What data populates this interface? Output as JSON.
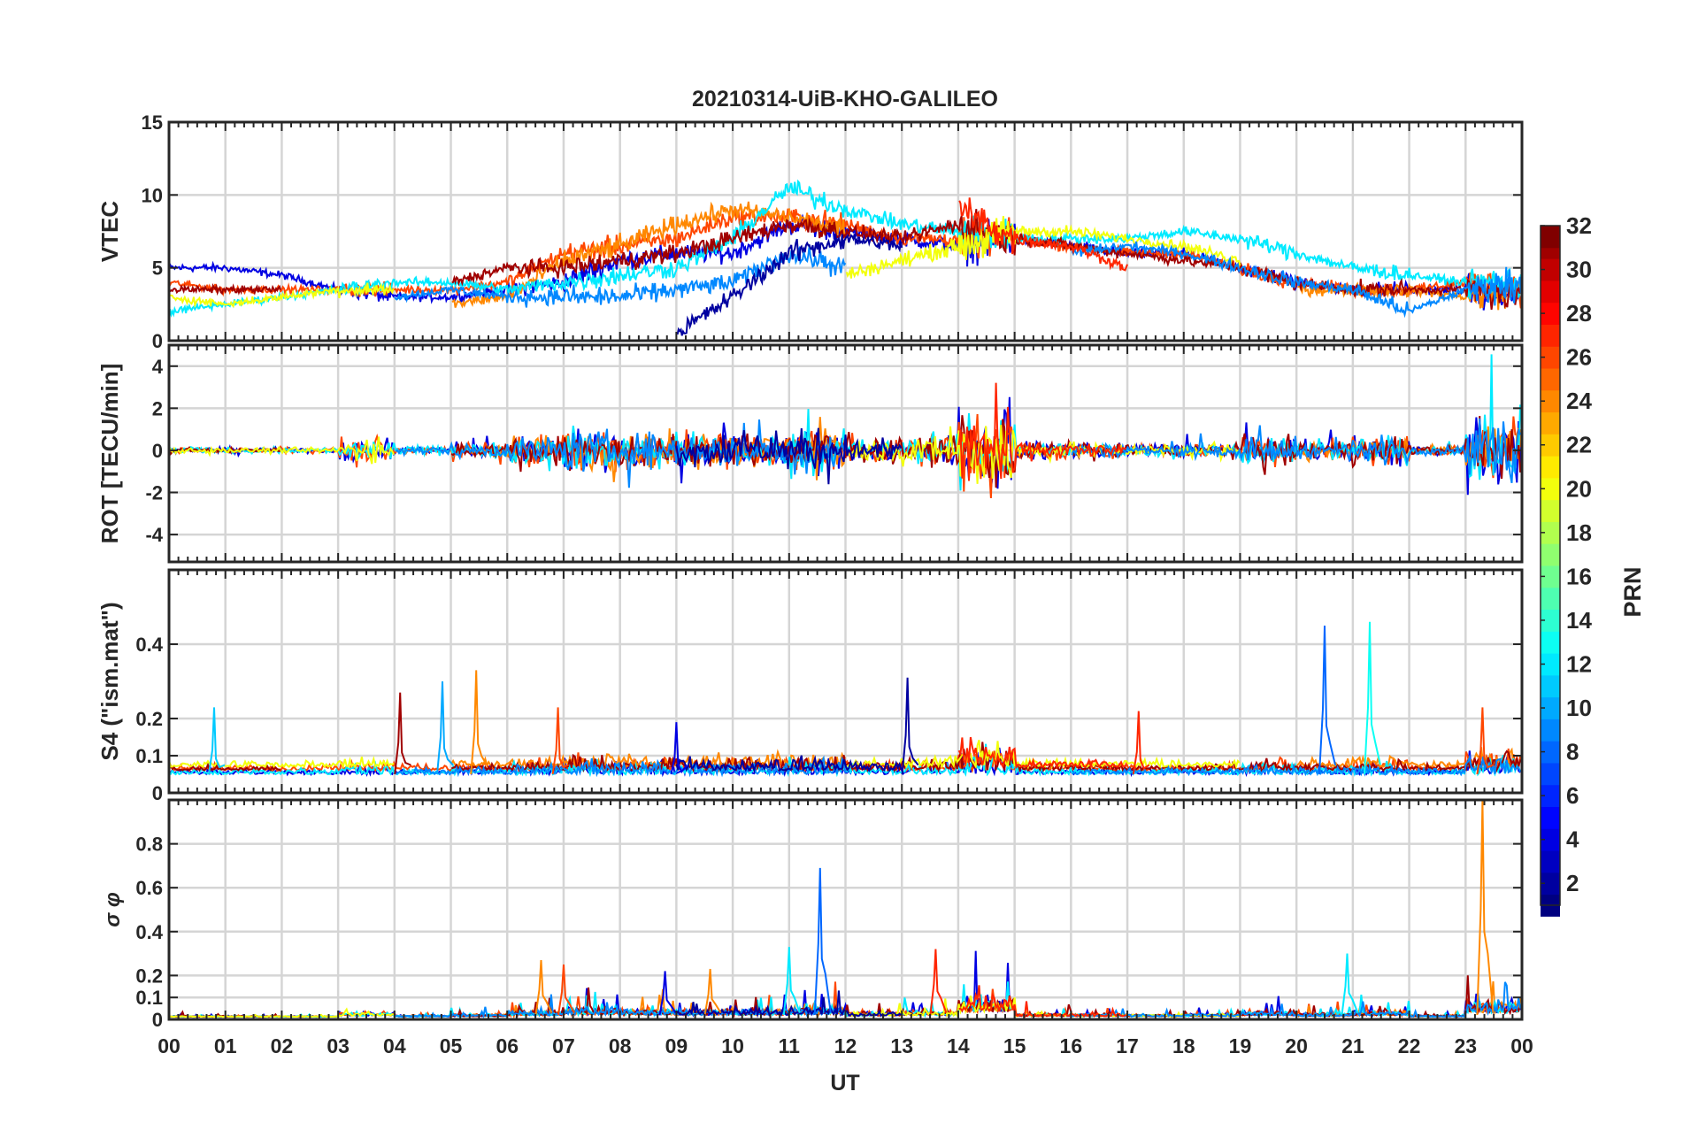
{
  "chart_data": {
    "type": "line",
    "title": "20210314-UiB-KHO-GALILEO",
    "xlabel": "UT",
    "xlim": [
      0,
      24
    ],
    "x_tick_labels": [
      "00",
      "01",
      "02",
      "03",
      "04",
      "05",
      "06",
      "07",
      "08",
      "09",
      "10",
      "11",
      "12",
      "13",
      "14",
      "15",
      "16",
      "17",
      "18",
      "19",
      "20",
      "21",
      "22",
      "23",
      "00"
    ],
    "grid": true,
    "colorbar": {
      "label": "PRN",
      "colormap": "jet",
      "range": [
        1,
        32
      ],
      "tick_labels": [
        "2",
        "4",
        "6",
        "8",
        "10",
        "12",
        "14",
        "16",
        "18",
        "20",
        "22",
        "24",
        "26",
        "28",
        "30",
        "32"
      ]
    },
    "panels": [
      {
        "id": "vtec",
        "ylabel": "VTEC",
        "ylim": [
          0,
          15
        ],
        "ticks": [
          0,
          5,
          10,
          15
        ],
        "tick_labels": [
          "0",
          "5",
          "10",
          "15"
        ],
        "series": [
          {
            "prn": 4,
            "hourly": [
              5,
              5,
              4.5,
              3.5,
              3,
              3,
              3.5,
              4,
              5.5,
              6,
              6,
              8,
              7.5,
              7,
              6.5,
              7,
              6.5,
              6,
              6,
              5,
              4,
              3.5,
              3.5,
              3.5,
              3
            ]
          },
          {
            "prn": 26,
            "hourly": [
              4,
              3.5,
              3.5,
              3.5,
              3.5,
              3.5,
              4,
              6,
              6.5,
              7,
              8.5,
              8.5,
              8,
              7,
              7,
              7,
              6.5,
              6,
              6,
              5,
              4,
              3.5,
              3.5,
              4,
              3.5
            ]
          },
          {
            "prn": 24,
            "hourly": [
              null,
              null,
              null,
              null,
              null,
              2.5,
              3,
              5.5,
              6.5,
              8,
              9,
              8.5,
              7.5,
              null,
              null,
              null,
              null,
              null,
              null,
              null,
              3.5,
              3.5,
              3.5,
              3,
              3.5
            ]
          },
          {
            "prn": 12,
            "hourly": [
              2,
              2.5,
              3,
              3.5,
              4,
              4,
              3.5,
              4,
              4.5,
              5,
              7,
              10.5,
              9,
              8,
              7.5,
              7,
              7,
              7,
              7.5,
              7,
              6,
              5,
              4.5,
              4,
              4
            ]
          },
          {
            "prn": 31,
            "hourly": [
              3.5,
              3.5,
              3.5,
              null,
              null,
              4,
              5,
              5,
              5.5,
              6,
              7,
              8,
              7.5,
              7,
              8,
              7,
              6.5,
              6,
              5.5,
              5,
              4,
              3.5,
              3.5,
              3.5,
              3
            ]
          },
          {
            "prn": 20,
            "hourly": [
              3,
              2.5,
              3,
              3.5,
              3.5,
              null,
              null,
              null,
              null,
              null,
              null,
              null,
              4.5,
              5.5,
              6.5,
              7.5,
              7.5,
              7,
              6.5,
              5.5,
              null,
              null,
              null,
              null,
              null
            ]
          },
          {
            "prn": 9,
            "hourly": [
              null,
              null,
              null,
              null,
              3,
              3.5,
              3,
              3,
              3,
              3.5,
              4,
              6,
              5,
              null,
              null,
              null,
              6,
              6.5,
              6,
              5,
              4,
              3.5,
              2,
              3.5,
              4
            ]
          },
          {
            "prn": 2,
            "hourly": [
              null,
              null,
              null,
              null,
              null,
              null,
              null,
              null,
              null,
              0.5,
              3,
              6,
              7,
              6.5,
              null,
              null,
              null,
              null,
              null,
              null,
              null,
              null,
              null,
              null,
              null
            ]
          },
          {
            "prn": 27,
            "hourly": [
              null,
              null,
              null,
              null,
              null,
              null,
              null,
              null,
              null,
              null,
              null,
              null,
              null,
              null,
              9,
              7,
              6.5,
              5,
              null,
              null,
              null,
              null,
              null,
              null,
              null
            ]
          }
        ]
      },
      {
        "id": "rot",
        "ylabel": "ROT [TECU/min]",
        "ylim": [
          -5.3,
          5
        ],
        "ticks": [
          -4,
          -2,
          0,
          2,
          4
        ],
        "tick_labels": [
          "-4",
          "-2",
          "0",
          "2",
          "4"
        ],
        "hourly_activity": [
          0.2,
          0.2,
          0.2,
          0.8,
          0.3,
          0.5,
          1,
          1.5,
          1.3,
          1.2,
          1.2,
          1.5,
          0.8,
          1,
          3,
          0.6,
          0.5,
          0.4,
          0.5,
          1,
          0.6,
          1,
          0.3,
          2.5,
          1
        ]
      },
      {
        "id": "s4",
        "ylabel": "S4 (\"ism.mat\")",
        "ylim": [
          0,
          0.6
        ],
        "ticks": [
          0,
          0.1,
          0.2,
          0.4
        ],
        "tick_labels": [
          "0",
          "0.1",
          "0.2",
          "0.4"
        ],
        "baseline": 0.05,
        "spikes": [
          {
            "t": 0.8,
            "v": 0.23,
            "prn": 11
          },
          {
            "t": 4.1,
            "v": 0.27,
            "prn": 31
          },
          {
            "t": 4.85,
            "v": 0.3,
            "prn": 10
          },
          {
            "t": 5.45,
            "v": 0.33,
            "prn": 24
          },
          {
            "t": 6.9,
            "v": 0.23,
            "prn": 26
          },
          {
            "t": 9.0,
            "v": 0.19,
            "prn": 4
          },
          {
            "t": 13.1,
            "v": 0.31,
            "prn": 2
          },
          {
            "t": 17.2,
            "v": 0.22,
            "prn": 27
          },
          {
            "t": 20.5,
            "v": 0.45,
            "prn": 8
          },
          {
            "t": 21.3,
            "v": 0.46,
            "prn": 13
          },
          {
            "t": 23.3,
            "v": 0.23,
            "prn": 26
          }
        ]
      },
      {
        "id": "sigma",
        "ylabel": "σ φ",
        "ylim": [
          0,
          1
        ],
        "ticks": [
          0,
          0.1,
          0.2,
          0.4,
          0.6,
          0.8
        ],
        "tick_labels": [
          "0",
          "0.1",
          "0.2",
          "0.4",
          "0.6",
          "0.8"
        ],
        "baseline": 0.02,
        "spikes": [
          {
            "t": 6.6,
            "v": 0.27,
            "prn": 24
          },
          {
            "t": 7.0,
            "v": 0.25,
            "prn": 26
          },
          {
            "t": 8.8,
            "v": 0.22,
            "prn": 4
          },
          {
            "t": 9.6,
            "v": 0.23,
            "prn": 24
          },
          {
            "t": 11.0,
            "v": 0.33,
            "prn": 12
          },
          {
            "t": 11.55,
            "v": 0.69,
            "prn": 8
          },
          {
            "t": 13.6,
            "v": 0.32,
            "prn": 27
          },
          {
            "t": 20.9,
            "v": 0.3,
            "prn": 12
          },
          {
            "t": 23.3,
            "v": 1.0,
            "prn": 24
          }
        ]
      }
    ]
  }
}
